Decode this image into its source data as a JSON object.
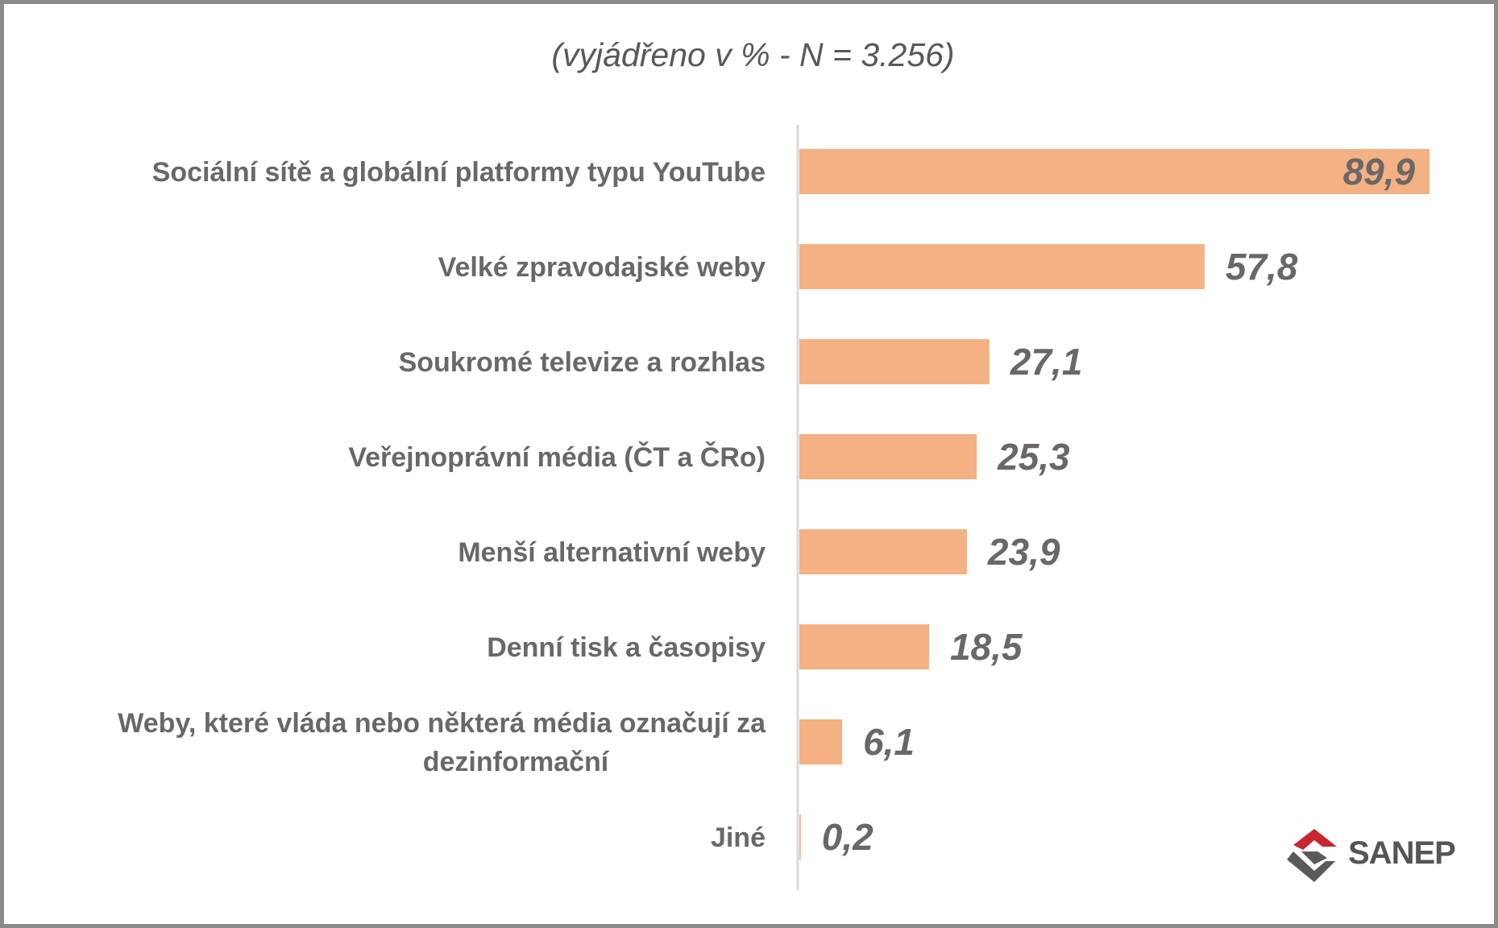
{
  "chart_data": {
    "type": "bar",
    "orientation": "horizontal",
    "subtitle": "(vyjádřeno v % - N = 3.256)",
    "categories": [
      "Sociální sítě a globální platformy typu YouTube",
      "Velké zpravodajské weby",
      "Soukromé televize a rozhlas",
      "Veřejnoprávní média (ČT a ČRo)",
      "Menší alternativní weby",
      "Denní tisk a časopisy",
      "Weby, které vláda nebo některá média označují za dezinformační",
      "Jiné"
    ],
    "category_lines": [
      [
        "Sociální sítě a globální platformy typu YouTube"
      ],
      [
        "Velké zpravodajské weby"
      ],
      [
        "Soukromé televize a rozhlas"
      ],
      [
        "Veřejnoprávní média (ČT a ČRo)"
      ],
      [
        "Menší alternativní weby"
      ],
      [
        "Denní tisk a časopisy"
      ],
      [
        "Weby, které vláda nebo některá média označují za",
        "dezinformační"
      ],
      [
        "Jiné"
      ]
    ],
    "values": [
      89.9,
      57.8,
      27.1,
      25.3,
      23.9,
      18.5,
      6.1,
      0.2
    ],
    "value_labels": [
      "89,9",
      "57,8",
      "27,1",
      "25,3",
      "23,9",
      "18,5",
      "6,1",
      "0,2"
    ],
    "bar_color": "#f4b183",
    "xlim": [
      0,
      100
    ],
    "grid": false,
    "legend": "none"
  },
  "logo": {
    "text": "SANEP",
    "colors": {
      "red": "#c8262c",
      "gray": "#5a5a5a"
    }
  }
}
